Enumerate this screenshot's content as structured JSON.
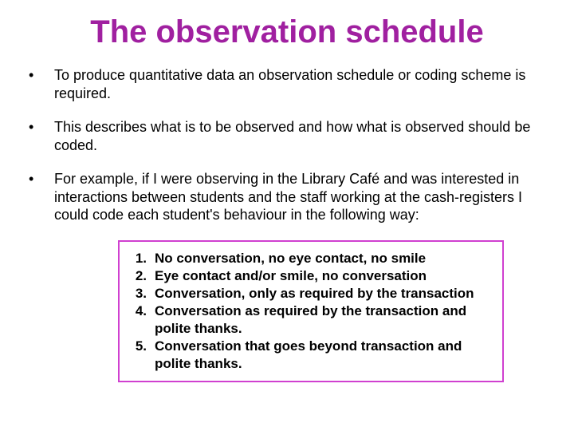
{
  "colors": {
    "title": "#a020a0",
    "box_border": "#d040d0",
    "text": "#000000"
  },
  "title": "The observation schedule",
  "bullets": [
    "To produce quantitative data an observation schedule or coding scheme is required.",
    "This describes what is to be observed and how what is observed should be coded.",
    "For example, if I were observing in the Library Café and was interested in interactions between students and the staff working at the cash-registers I could code each student's behaviour in the following way:"
  ],
  "coded_list": [
    "No conversation, no eye contact, no smile",
    "Eye contact and/or smile, no conversation",
    "Conversation, only as required by the transaction",
    "Conversation as required by the transaction and polite thanks.",
    "Conversation that goes beyond transaction and polite thanks."
  ]
}
